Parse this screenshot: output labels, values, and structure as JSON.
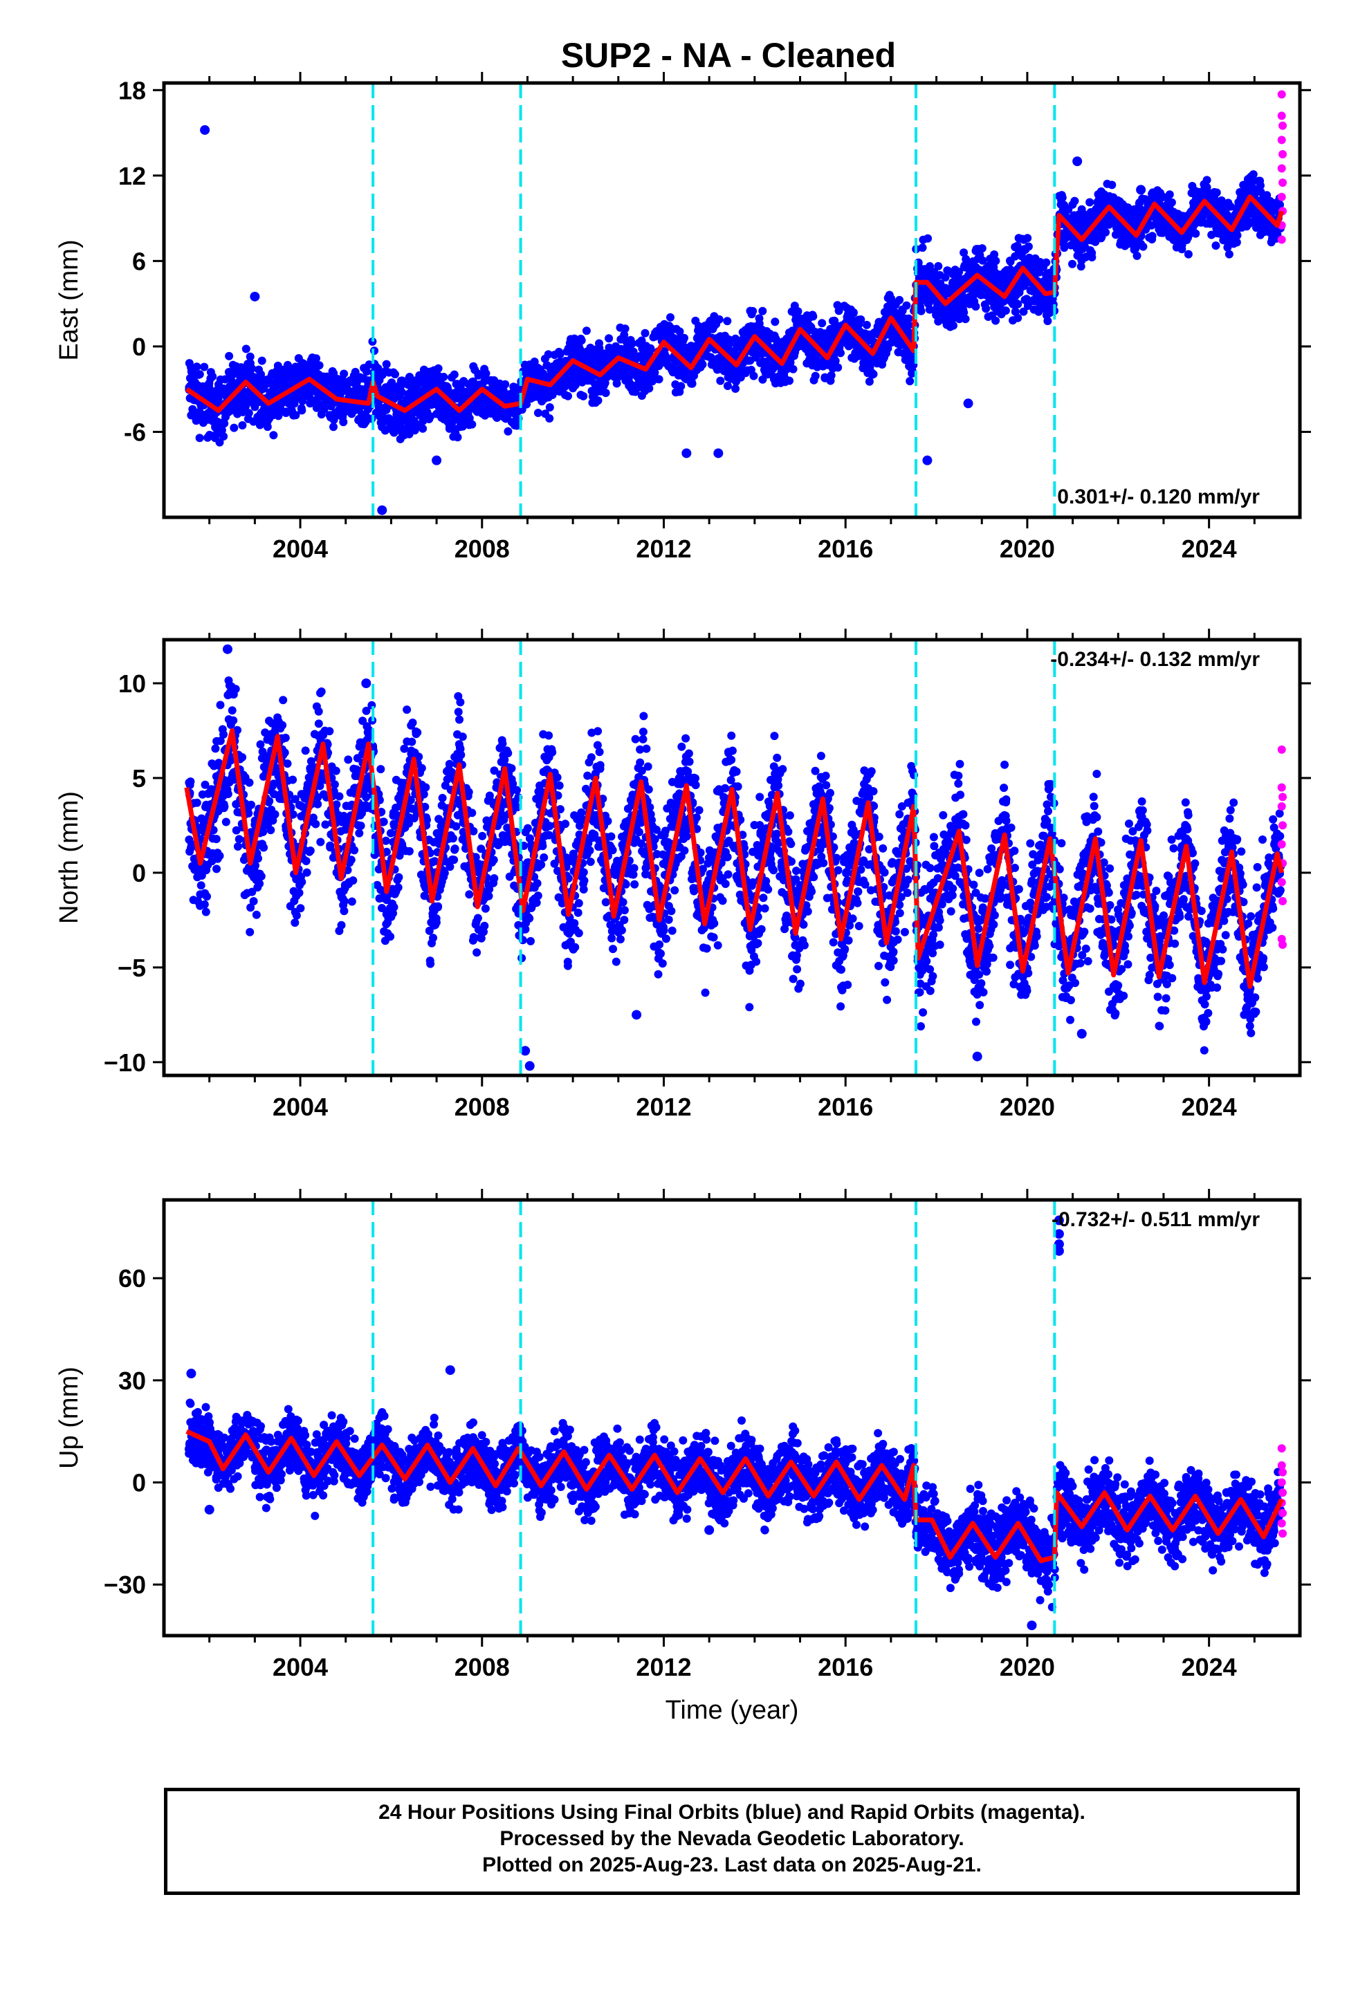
{
  "chart_data": [
    {
      "type": "scatter",
      "title": "SUP2  - NA - Cleaned",
      "ylabel": "East (mm)",
      "xlabel": "",
      "xlim": [
        2001.0,
        2026.0
      ],
      "ylim": [
        -12,
        18.5
      ],
      "x_ticks": [
        2004,
        2008,
        2012,
        2016,
        2020,
        2024
      ],
      "y_ticks": [
        -6,
        0,
        6,
        12,
        18
      ],
      "rate_label": "0.301+/- 0.120 mm/yr",
      "steps": [
        2005.6,
        2008.85,
        2017.55,
        2020.6
      ],
      "colors": {
        "final": "#0000ff",
        "rapid": "#ff00ff",
        "model": "#ff0000",
        "steps": "#00e5ee"
      },
      "model": [
        [
          2001.5,
          -3
        ],
        [
          2002.2,
          -4.5
        ],
        [
          2002.8,
          -2.5
        ],
        [
          2003.3,
          -4
        ],
        [
          2004.2,
          -2.3
        ],
        [
          2004.8,
          -3.7
        ],
        [
          2005.5,
          -4
        ],
        [
          2005.6,
          -2.5
        ],
        [
          2005.7,
          -3.5
        ],
        [
          2006.3,
          -4.5
        ],
        [
          2007.0,
          -3
        ],
        [
          2007.5,
          -4.5
        ],
        [
          2008.0,
          -3
        ],
        [
          2008.5,
          -4.2
        ],
        [
          2008.85,
          -4
        ],
        [
          2009.0,
          -2.3
        ],
        [
          2009.5,
          -2.7
        ],
        [
          2010.0,
          -1
        ],
        [
          2010.6,
          -2
        ],
        [
          2011.0,
          -0.8
        ],
        [
          2011.6,
          -1.6
        ],
        [
          2012.0,
          0.3
        ],
        [
          2012.6,
          -1.5
        ],
        [
          2013.0,
          0.5
        ],
        [
          2013.6,
          -1.3
        ],
        [
          2014.0,
          0.7
        ],
        [
          2014.6,
          -1.2
        ],
        [
          2015.0,
          1.2
        ],
        [
          2015.6,
          -0.8
        ],
        [
          2016.0,
          1.5
        ],
        [
          2016.6,
          -0.5
        ],
        [
          2017.0,
          2
        ],
        [
          2017.5,
          -0.3
        ],
        [
          2017.55,
          4.5
        ],
        [
          2017.8,
          4.5
        ],
        [
          2018.2,
          3
        ],
        [
          2018.9,
          5
        ],
        [
          2019.5,
          3.5
        ],
        [
          2019.9,
          5.5
        ],
        [
          2020.4,
          3.7
        ],
        [
          2020.6,
          3.8
        ],
        [
          2020.7,
          9.2
        ],
        [
          2021.2,
          7.5
        ],
        [
          2021.8,
          9.8
        ],
        [
          2022.4,
          7.8
        ],
        [
          2022.8,
          10
        ],
        [
          2023.4,
          8
        ],
        [
          2023.9,
          10.2
        ],
        [
          2024.5,
          8.2
        ],
        [
          2024.9,
          10.5
        ],
        [
          2025.5,
          8.5
        ],
        [
          2025.6,
          9.5
        ]
      ],
      "band": [
        [
          2001.5,
          -7,
          2
        ],
        [
          2003.0,
          -6,
          1
        ],
        [
          2005.0,
          -6,
          0
        ],
        [
          2005.8,
          -10,
          -1
        ],
        [
          2006.5,
          -7,
          0
        ],
        [
          2008.0,
          -6,
          0
        ],
        [
          2009.0,
          -4,
          2
        ],
        [
          2011.0,
          -4,
          3
        ],
        [
          2013.0,
          -4,
          3
        ],
        [
          2015.0,
          -3,
          4
        ],
        [
          2017.0,
          -3,
          4
        ],
        [
          2017.6,
          0,
          8
        ],
        [
          2020.0,
          0,
          8
        ],
        [
          2020.7,
          6,
          12
        ],
        [
          2025.6,
          6,
          12
        ]
      ],
      "outliers": [
        [
          2001.9,
          15.2
        ],
        [
          2003.0,
          3.5
        ],
        [
          2005.8,
          -11.5
        ],
        [
          2007.0,
          -8
        ],
        [
          2012.5,
          -7.5
        ],
        [
          2013.2,
          -7.5
        ],
        [
          2017.8,
          -8
        ],
        [
          2018.7,
          -4
        ],
        [
          2021.1,
          13
        ],
        [
          2022.5,
          11
        ]
      ],
      "rapid": [
        [
          2025.6,
          17.7
        ],
        [
          2025.6,
          16.2
        ],
        [
          2025.62,
          15.5
        ],
        [
          2025.6,
          14.5
        ],
        [
          2025.62,
          13.5
        ],
        [
          2025.6,
          12.5
        ],
        [
          2025.62,
          11.5
        ],
        [
          2025.6,
          10.5
        ],
        [
          2025.62,
          9.5
        ],
        [
          2025.6,
          8.5
        ],
        [
          2025.6,
          7.5
        ]
      ]
    },
    {
      "type": "scatter",
      "title": "",
      "ylabel": "North (mm)",
      "xlabel": "",
      "xlim": [
        2001.0,
        2026.0
      ],
      "ylim": [
        -10.7,
        12.3
      ],
      "x_ticks": [
        2004,
        2008,
        2012,
        2016,
        2020,
        2024
      ],
      "y_ticks": [
        -10,
        -5,
        0,
        5,
        10
      ],
      "y_tick_labels": [
        "−10",
        "−5",
        "0",
        "5",
        "10"
      ],
      "rate_label": "-0.234+/- 0.132 mm/yr",
      "steps": [
        2005.6,
        2008.85,
        2017.55,
        2020.6
      ],
      "colors": {
        "final": "#0000ff",
        "rapid": "#ff00ff",
        "model": "#ff0000",
        "steps": "#00e5ee"
      },
      "model": [
        [
          2001.5,
          4.5
        ],
        [
          2001.8,
          0.5
        ],
        [
          2002.5,
          7.5
        ],
        [
          2002.9,
          0.5
        ],
        [
          2003.5,
          7.2
        ],
        [
          2003.9,
          0
        ],
        [
          2004.5,
          6.8
        ],
        [
          2004.9,
          -0.3
        ],
        [
          2005.5,
          6.8
        ],
        [
          2005.9,
          -1
        ],
        [
          2006.5,
          6
        ],
        [
          2006.9,
          -1.5
        ],
        [
          2007.5,
          5.7
        ],
        [
          2007.9,
          -1.8
        ],
        [
          2008.5,
          5.5
        ],
        [
          2008.9,
          -2
        ],
        [
          2009.5,
          5.2
        ],
        [
          2009.9,
          -2.2
        ],
        [
          2010.5,
          5
        ],
        [
          2010.9,
          -2.3
        ],
        [
          2011.5,
          4.8
        ],
        [
          2011.9,
          -2.5
        ],
        [
          2012.5,
          4.6
        ],
        [
          2012.9,
          -2.7
        ],
        [
          2013.5,
          4.4
        ],
        [
          2013.9,
          -3
        ],
        [
          2014.5,
          4.2
        ],
        [
          2014.9,
          -3.2
        ],
        [
          2015.5,
          3.9
        ],
        [
          2015.9,
          -3.5
        ],
        [
          2016.5,
          3.7
        ],
        [
          2016.9,
          -3.7
        ],
        [
          2017.5,
          3.5
        ],
        [
          2017.6,
          -4.5
        ],
        [
          2018.5,
          2.2
        ],
        [
          2018.9,
          -4.9
        ],
        [
          2019.5,
          2
        ],
        [
          2019.9,
          -5.2
        ],
        [
          2020.5,
          1.8
        ],
        [
          2020.9,
          -5.3
        ],
        [
          2021.5,
          1.8
        ],
        [
          2021.9,
          -5.4
        ],
        [
          2022.5,
          1.7
        ],
        [
          2022.9,
          -5.5
        ],
        [
          2023.5,
          1.4
        ],
        [
          2023.9,
          -5.8
        ],
        [
          2024.5,
          1.1
        ],
        [
          2024.9,
          -6
        ],
        [
          2025.5,
          1
        ],
        [
          2025.6,
          0
        ]
      ],
      "band": [
        [
          2001.5,
          -3,
          9
        ],
        [
          2005.0,
          -3,
          8.5
        ],
        [
          2008.0,
          -4,
          7.5
        ],
        [
          2012.0,
          -5,
          7
        ],
        [
          2016.0,
          -6,
          6
        ],
        [
          2020.0,
          -8,
          4
        ],
        [
          2025.6,
          -8,
          3.5
        ]
      ],
      "outliers": [
        [
          2002.4,
          11.8
        ],
        [
          2005.45,
          10
        ],
        [
          2008.95,
          -9.4
        ],
        [
          2009.05,
          -10.2
        ],
        [
          2011.4,
          -7.5
        ],
        [
          2018.9,
          -9.7
        ],
        [
          2021.2,
          -8.5
        ]
      ],
      "rapid": [
        [
          2025.6,
          6.5
        ],
        [
          2025.6,
          4.5
        ],
        [
          2025.62,
          4
        ],
        [
          2025.6,
          3.5
        ],
        [
          2025.62,
          2.5
        ],
        [
          2025.6,
          1.5
        ],
        [
          2025.62,
          0.5
        ],
        [
          2025.6,
          -0.5
        ],
        [
          2025.62,
          -1.5
        ],
        [
          2025.6,
          -3.5
        ],
        [
          2025.62,
          -3.8
        ]
      ]
    },
    {
      "type": "scatter",
      "title": "",
      "ylabel": "Up (mm)",
      "xlabel": "Time (year)",
      "xlim": [
        2001.0,
        2026.0
      ],
      "ylim": [
        -45,
        83
      ],
      "x_ticks": [
        2004,
        2008,
        2012,
        2016,
        2020,
        2024
      ],
      "y_ticks": [
        -30,
        0,
        30,
        60
      ],
      "y_tick_labels": [
        "−30",
        "0",
        "30",
        "60"
      ],
      "rate_label": "-0.732+/- 0.511 mm/yr",
      "steps": [
        2005.6,
        2008.85,
        2017.55,
        2020.6
      ],
      "colors": {
        "final": "#0000ff",
        "rapid": "#ff00ff",
        "model": "#ff0000",
        "steps": "#00e5ee"
      },
      "model": [
        [
          2001.5,
          15
        ],
        [
          2002.0,
          12
        ],
        [
          2002.3,
          4
        ],
        [
          2002.8,
          14
        ],
        [
          2003.3,
          3
        ],
        [
          2003.8,
          13
        ],
        [
          2004.3,
          2
        ],
        [
          2004.8,
          12
        ],
        [
          2005.3,
          2
        ],
        [
          2005.8,
          11
        ],
        [
          2006.3,
          1
        ],
        [
          2006.8,
          11
        ],
        [
          2007.3,
          0
        ],
        [
          2007.8,
          10
        ],
        [
          2008.3,
          -1
        ],
        [
          2008.8,
          10
        ],
        [
          2009.3,
          -1
        ],
        [
          2009.8,
          9
        ],
        [
          2010.3,
          -2
        ],
        [
          2010.8,
          8
        ],
        [
          2011.3,
          -2
        ],
        [
          2011.8,
          8
        ],
        [
          2012.3,
          -3
        ],
        [
          2012.8,
          7
        ],
        [
          2013.3,
          -3
        ],
        [
          2013.8,
          7
        ],
        [
          2014.3,
          -4
        ],
        [
          2014.8,
          6
        ],
        [
          2015.3,
          -4
        ],
        [
          2015.8,
          6
        ],
        [
          2016.3,
          -5
        ],
        [
          2016.8,
          5
        ],
        [
          2017.3,
          -5
        ],
        [
          2017.5,
          5
        ],
        [
          2017.55,
          -11
        ],
        [
          2017.9,
          -11
        ],
        [
          2018.3,
          -22
        ],
        [
          2018.8,
          -12
        ],
        [
          2019.3,
          -22
        ],
        [
          2019.8,
          -12
        ],
        [
          2020.3,
          -23
        ],
        [
          2020.6,
          -22
        ],
        [
          2020.65,
          -3
        ],
        [
          2021.2,
          -13
        ],
        [
          2021.7,
          -3
        ],
        [
          2022.2,
          -14
        ],
        [
          2022.7,
          -4
        ],
        [
          2023.2,
          -14
        ],
        [
          2023.7,
          -4
        ],
        [
          2024.2,
          -15
        ],
        [
          2024.7,
          -5
        ],
        [
          2025.2,
          -16
        ],
        [
          2025.6,
          -5
        ]
      ],
      "band": [
        [
          2001.5,
          -5,
          27
        ],
        [
          2005.0,
          -8,
          22
        ],
        [
          2009.0,
          -10,
          20
        ],
        [
          2013.0,
          -12,
          22
        ],
        [
          2017.5,
          -15,
          18
        ],
        [
          2017.6,
          -35,
          0
        ],
        [
          2020.5,
          -38,
          0
        ],
        [
          2020.7,
          -28,
          10
        ],
        [
          2025.6,
          -28,
          8
        ]
      ],
      "outliers": [
        [
          2001.6,
          32
        ],
        [
          2007.3,
          33
        ],
        [
          2002.0,
          -8
        ],
        [
          2013.0,
          -14
        ],
        [
          2020.1,
          -42
        ],
        [
          2020.7,
          73
        ],
        [
          2020.7,
          77
        ],
        [
          2020.7,
          70
        ],
        [
          2020.7,
          68
        ]
      ],
      "rapid": [
        [
          2025.6,
          10
        ],
        [
          2025.6,
          5
        ],
        [
          2025.62,
          3
        ],
        [
          2025.6,
          0
        ],
        [
          2025.62,
          -3
        ],
        [
          2025.6,
          -6
        ],
        [
          2025.62,
          -9
        ],
        [
          2025.6,
          -12
        ],
        [
          2025.62,
          -15
        ]
      ]
    }
  ],
  "footer": {
    "line1": "24 Hour Positions Using Final Orbits (blue) and Rapid Orbits (magenta).",
    "line2": "Processed by the Nevada Geodetic Laboratory.",
    "line3": "Plotted on 2025-Aug-23. Last data on 2025-Aug-21."
  }
}
